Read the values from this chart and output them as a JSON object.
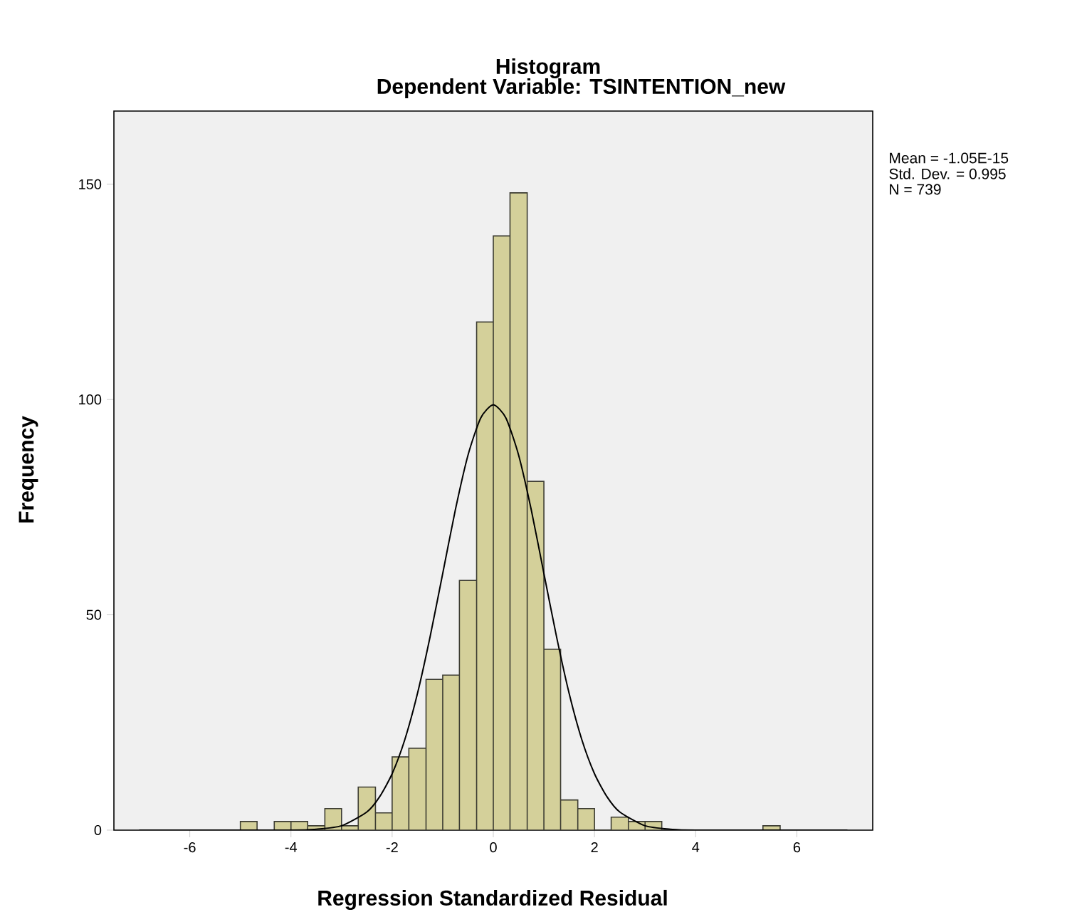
{
  "chart_data": {
    "type": "histogram",
    "title": "Histogram",
    "subtitle": "Dependent Variable: TSINTENTION_new",
    "xlabel": "Regression Standardized Residual",
    "ylabel": "Frequency",
    "bins": [
      -5,
      -4.67,
      -4.33,
      -4,
      -3.67,
      -3.33,
      -3,
      -2.67,
      -2.33,
      -2,
      -1.67,
      -1.33,
      -1,
      -0.67,
      -0.33,
      0,
      0.33,
      0.67,
      1,
      1.33,
      1.67,
      2,
      2.33,
      2.67,
      3,
      3.33
    ],
    "values": [
      2,
      0,
      2,
      2,
      1,
      5,
      1,
      10,
      4,
      17,
      19,
      35,
      36,
      58,
      118,
      138,
      148,
      81,
      42,
      7,
      5,
      0,
      3,
      2,
      2
    ],
    "color": "#d4d09a",
    "series": [
      {
        "type": "histogram",
        "color": "#d4d09a",
        "bins": [
          5.33,
          5.67
        ],
        "values": [
          1
        ]
      },
      {
        "type": "line",
        "color": "#000000",
        "x": [
          -7,
          -4,
          -3.5,
          -3,
          -2.5,
          -2.25,
          -2,
          -1.75,
          -1.5,
          -1.25,
          -1,
          -0.75,
          -0.5,
          -0.25,
          0,
          0.25,
          0.5,
          0.75,
          1,
          1.25,
          1.5,
          1.75,
          2,
          2.25,
          2.5,
          3,
          3.5,
          4,
          7
        ],
        "values": [
          0,
          0,
          0.2,
          1,
          4.2,
          7.7,
          13.1,
          21,
          31.7,
          44.9,
          59.6,
          74.4,
          87.1,
          95.7,
          98.8,
          95.7,
          87.1,
          74.4,
          59.6,
          44.9,
          31.7,
          21,
          13.1,
          7.7,
          4.2,
          1,
          0.2,
          0,
          0
        ]
      }
    ],
    "xlim": [
      -7.5,
      7.5
    ],
    "ylim": [
      0,
      167
    ],
    "xticks": [
      -6,
      -4,
      -2,
      0,
      2,
      4,
      6
    ],
    "yticks": [
      0,
      50,
      100,
      150
    ],
    "annotations": [
      "Mean = -1.05E-15",
      "Std. Dev. = 0.995",
      "N = 739"
    ]
  }
}
